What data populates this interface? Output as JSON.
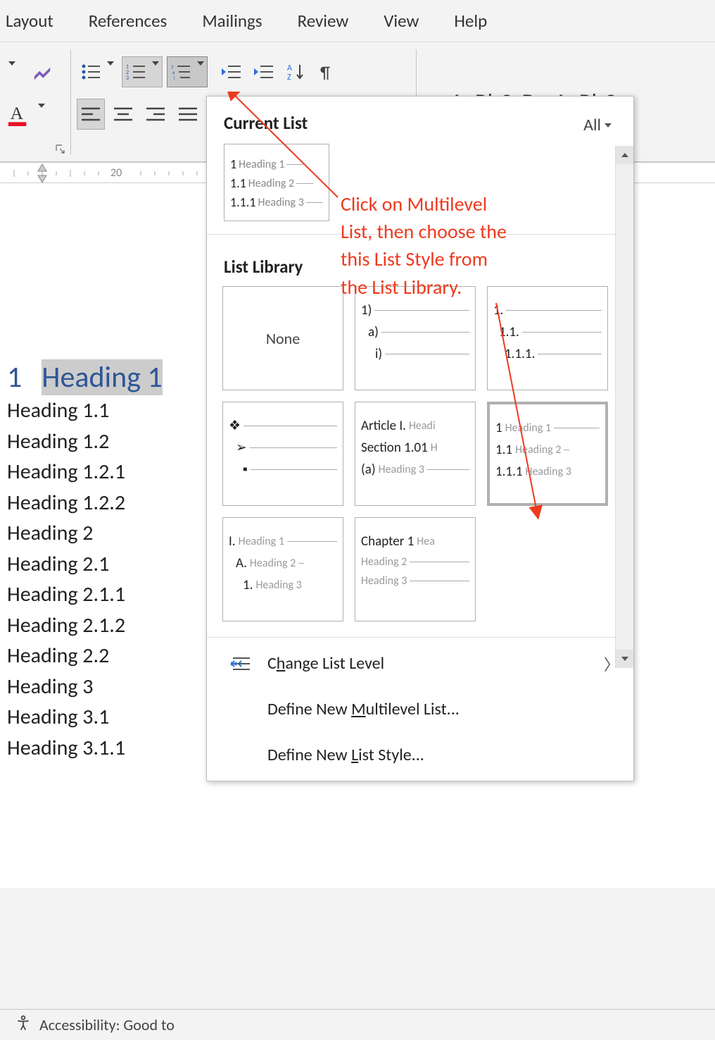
{
  "ribbon": {
    "tabs": [
      "Layout",
      "References",
      "Mailings",
      "Review",
      "View",
      "Help"
    ]
  },
  "paragraph_group": {
    "multilevel_selected": true
  },
  "styles_gallery": {
    "sample1": "AaBbCcDc",
    "sample2": "AaBbCc",
    "all_label": "All"
  },
  "dropdown": {
    "current_list_title": "Current List",
    "current_list": {
      "r1_num": "1",
      "r1_lbl": "Heading 1",
      "r2_num": "1.1",
      "r2_lbl": "Heading 2",
      "r3_num": "1.1.1",
      "r3_lbl": "Heading 3"
    },
    "library_title": "List Library",
    "none_label": "None",
    "card2": {
      "a": "1)",
      "b": "a)",
      "c": "i)"
    },
    "card3": {
      "a": "1.",
      "b": "1.1.",
      "c": "1.1.1."
    },
    "card4_bullets": {
      "a": "❖",
      "b": "➢",
      "c": "▪"
    },
    "card5": {
      "a_p": "Article I.",
      "a_g": "Headi",
      "b_p": "Section 1.01",
      "b_g": "H",
      "c_p": "(a)",
      "c_g": "Heading 3"
    },
    "card6": {
      "a_p": "1",
      "a_g": "Heading 1",
      "b_p": "1.1",
      "b_g": "Heading 2",
      "c_p": "1.1.1",
      "c_g": "Heading 3"
    },
    "card7": {
      "a_p": "I.",
      "a_g": "Heading 1",
      "b_p": "A.",
      "b_g": "Heading 2",
      "c_p": "1.",
      "c_g": "Heading 3"
    },
    "card8": {
      "a_p": "Chapter 1",
      "a_g": "Hea",
      "b_g": "Heading 2",
      "c_g": "Heading 3"
    },
    "menu": {
      "change_level_pre": "C",
      "change_level_u": "h",
      "change_level_post": "ange List Level",
      "define_ml_pre": "Define New ",
      "define_ml_u": "M",
      "define_ml_post": "ultilevel List...",
      "define_ls_pre": "Define New ",
      "define_ls_u": "L",
      "define_ls_post": "ist Style..."
    }
  },
  "ruler": {
    "tick_label": "20"
  },
  "document": {
    "h1_num": "1",
    "h1_text": "Heading 1",
    "lines": [
      "Heading 1.1",
      "Heading 1.2",
      "Heading 1.2.1",
      "Heading 1.2.2",
      "Heading 2",
      "Heading 2.1",
      "Heading 2.1.1",
      "Heading 2.1.2",
      "Heading 2.2",
      "Heading 3",
      "Heading 3.1",
      "Heading 3.1.1"
    ]
  },
  "annotation": {
    "l1": "Click on Multilevel",
    "l2": "List, then choose the",
    "l3": "this List Style from",
    "l4": "the List Library.",
    "color": "#ee3a1f"
  },
  "status_bar": {
    "accessibility_label": "Accessibility: Good to"
  }
}
